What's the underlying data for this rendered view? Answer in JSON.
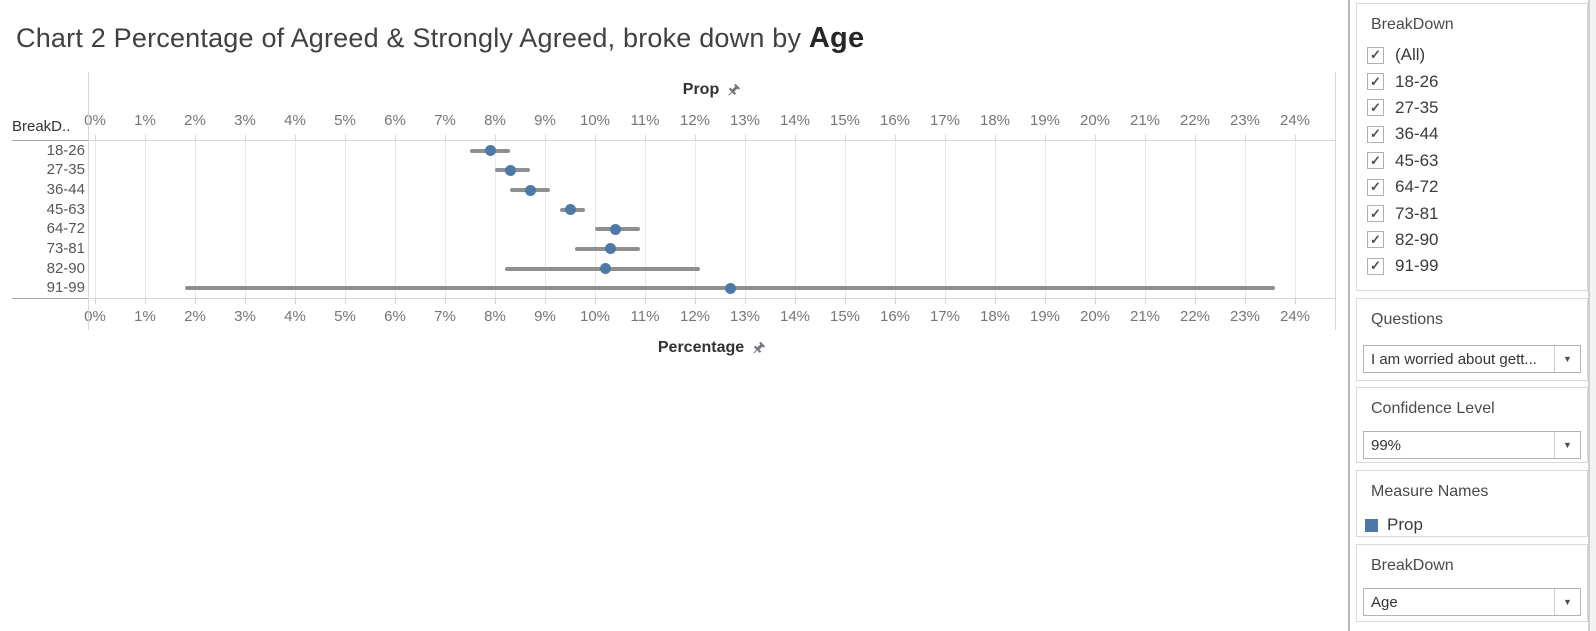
{
  "title": {
    "prefix": "Chart 2 Percentage of Agreed & Strongly Agreed, broke down by ",
    "emphasis": "Age"
  },
  "chart_data": {
    "type": "scatter",
    "subtype": "dot-plot-with-confidence-intervals",
    "orientation": "horizontal",
    "row_header": "BreakD..",
    "top_axis_title": "Prop",
    "bottom_axis_title": "Percentage",
    "x_min": 0,
    "x_max": 24,
    "x_unit": "%",
    "ticks": [
      "0%",
      "1%",
      "2%",
      "3%",
      "4%",
      "5%",
      "6%",
      "7%",
      "8%",
      "9%",
      "10%",
      "11%",
      "12%",
      "13%",
      "14%",
      "15%",
      "16%",
      "17%",
      "18%",
      "19%",
      "20%",
      "21%",
      "22%",
      "23%",
      "24%"
    ],
    "grid": true,
    "series_name": "Prop",
    "rows": [
      {
        "label": "18-26",
        "value": 7.9,
        "ci_low": 7.5,
        "ci_high": 8.3
      },
      {
        "label": "27-35",
        "value": 8.3,
        "ci_low": 8.0,
        "ci_high": 8.7
      },
      {
        "label": "36-44",
        "value": 8.7,
        "ci_low": 8.3,
        "ci_high": 9.1
      },
      {
        "label": "45-63",
        "value": 9.5,
        "ci_low": 9.3,
        "ci_high": 9.8
      },
      {
        "label": "64-72",
        "value": 10.4,
        "ci_low": 10.0,
        "ci_high": 10.9
      },
      {
        "label": "73-81",
        "value": 10.3,
        "ci_low": 9.6,
        "ci_high": 10.9
      },
      {
        "label": "82-90",
        "value": 10.2,
        "ci_low": 8.2,
        "ci_high": 12.1
      },
      {
        "label": "91-99",
        "value": 12.7,
        "ci_low": 1.8,
        "ci_high": 23.6
      }
    ]
  },
  "sidebar": {
    "filter": {
      "title": "BreakDown",
      "check_glyph": "✓",
      "items": [
        {
          "label": "(All)",
          "checked": true
        },
        {
          "label": "18-26",
          "checked": true
        },
        {
          "label": "27-35",
          "checked": true
        },
        {
          "label": "36-44",
          "checked": true
        },
        {
          "label": "45-63",
          "checked": true
        },
        {
          "label": "64-72",
          "checked": true
        },
        {
          "label": "73-81",
          "checked": true
        },
        {
          "label": "82-90",
          "checked": true
        },
        {
          "label": "91-99",
          "checked": true
        }
      ]
    },
    "questions": {
      "title": "Questions",
      "value": "I am worried about gett...",
      "caret": "▼"
    },
    "confidence": {
      "title": "Confidence Level",
      "value": "99%",
      "caret": "▼"
    },
    "measures": {
      "title": "Measure Names",
      "items": [
        {
          "label": "Prop",
          "color": "#4e79a7"
        }
      ]
    },
    "breakdown_param": {
      "title": "BreakDown",
      "value": "Age",
      "caret": "▼"
    }
  },
  "colors": {
    "dot": "#4e79a7",
    "ci_bar": "#8f8f8f",
    "legend_swatch": "#4e79a7"
  }
}
